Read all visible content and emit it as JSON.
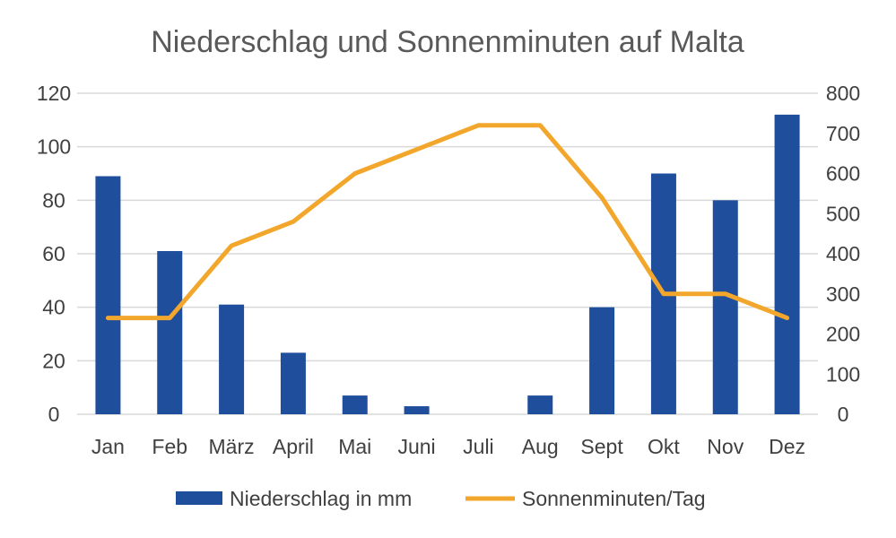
{
  "chart_data": {
    "type": "bar",
    "title": "Niederschlag und Sonnenminuten auf Malta",
    "categories": [
      "Jan",
      "Feb",
      "März",
      "April",
      "Mai",
      "Juni",
      "Juli",
      "Aug",
      "Sept",
      "Okt",
      "Nov",
      "Dez"
    ],
    "series": [
      {
        "name": "Niederschlag in mm",
        "type": "bar",
        "axis": "left",
        "color": "#1f4e9c",
        "values": [
          89,
          61,
          41,
          23,
          7,
          3,
          0,
          7,
          40,
          90,
          80,
          112
        ]
      },
      {
        "name": "Sonnenminuten/Tag",
        "type": "line",
        "axis": "right",
        "color": "#f2a72c",
        "values": [
          240,
          240,
          420,
          480,
          600,
          660,
          720,
          720,
          540,
          300,
          300,
          240
        ]
      }
    ],
    "y_left": {
      "range": [
        0,
        120
      ],
      "ticks": [
        0,
        20,
        40,
        60,
        80,
        100,
        120
      ]
    },
    "y_right": {
      "range": [
        0,
        800
      ],
      "ticks": [
        0,
        100,
        200,
        300,
        400,
        500,
        600,
        700,
        800
      ]
    },
    "grid": true,
    "legend_position": "bottom"
  }
}
